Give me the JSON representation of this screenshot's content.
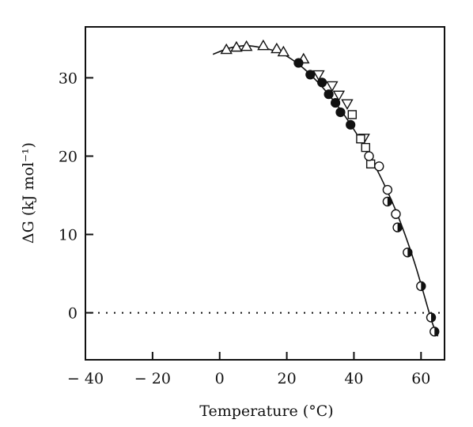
{
  "chart_data": {
    "type": "scatter",
    "title": "",
    "xlabel": "Temperature (°C)",
    "ylabel": "ΔG (kJ mol⁻¹)",
    "xlim": [
      -40,
      67
    ],
    "ylim": [
      -6,
      36.5
    ],
    "xticks": [
      -40,
      -20,
      0,
      20,
      40,
      60
    ],
    "xtick_labels": [
      "− 40",
      "− 20",
      "0",
      "20",
      "40",
      "60"
    ],
    "yticks": [
      0,
      10,
      20,
      30
    ],
    "ytick_labels": [
      "0",
      "10",
      "20",
      "30"
    ],
    "grid": false,
    "legend": "none",
    "reference_line": {
      "y": 0,
      "style": "dotted",
      "x_from": -40,
      "x_to": 67
    },
    "fit_curve": {
      "x": [
        -2,
        3,
        8,
        13,
        18,
        23,
        28,
        33,
        38,
        43,
        48,
        53,
        58,
        63,
        65
      ],
      "y": [
        33.0,
        33.8,
        34.1,
        33.8,
        33.2,
        31.9,
        30.0,
        27.6,
        24.7,
        21.3,
        17.3,
        12.5,
        6.5,
        -0.8,
        -3.0
      ]
    },
    "series": [
      {
        "marker": "open-triangle-up",
        "points": [
          [
            2,
            33.6
          ],
          [
            5,
            33.9
          ],
          [
            8,
            34.0
          ],
          [
            13,
            34.1
          ],
          [
            17,
            33.7
          ],
          [
            19,
            33.3
          ],
          [
            25,
            32.4
          ]
        ]
      },
      {
        "marker": "filled-circle",
        "points": [
          [
            23.5,
            31.9
          ],
          [
            27,
            30.4
          ],
          [
            30.5,
            29.4
          ],
          [
            32.5,
            27.9
          ],
          [
            34.5,
            26.8
          ],
          [
            36,
            25.6
          ],
          [
            39,
            24.0
          ]
        ]
      },
      {
        "marker": "open-triangle-down",
        "points": [
          [
            29.5,
            30.4
          ],
          [
            33.5,
            29.0
          ],
          [
            35.5,
            27.8
          ],
          [
            38,
            26.7
          ],
          [
            43,
            22.3
          ]
        ]
      },
      {
        "marker": "open-square",
        "points": [
          [
            39.5,
            25.3
          ],
          [
            42,
            22.2
          ],
          [
            43.5,
            21.1
          ],
          [
            45,
            19.0
          ]
        ]
      },
      {
        "marker": "open-circle",
        "points": [
          [
            44.5,
            20.0
          ],
          [
            47.5,
            18.7
          ],
          [
            50,
            15.7
          ],
          [
            52.5,
            12.6
          ]
        ]
      },
      {
        "marker": "half-filled-circle",
        "points": [
          [
            50,
            14.2
          ],
          [
            53,
            10.9
          ],
          [
            56,
            7.7
          ],
          [
            60,
            3.4
          ],
          [
            63,
            -0.6
          ],
          [
            64,
            -2.4
          ]
        ]
      }
    ]
  }
}
